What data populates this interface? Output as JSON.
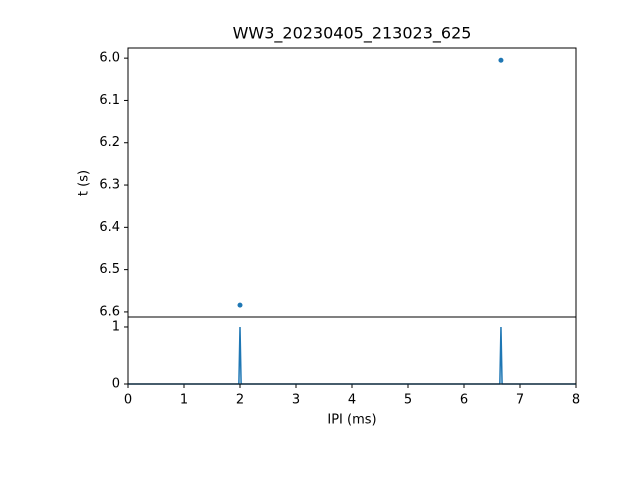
{
  "chart_data": [
    {
      "type": "scatter",
      "title": "WW3_20230405_213023_625",
      "y_label": "t (s)",
      "x": [
        6.66,
        2.0
      ],
      "values": [
        6.005,
        6.584
      ],
      "color": "#1f77b4",
      "xlim": [
        0,
        8
      ],
      "ylim": [
        6.612,
        5.976
      ],
      "yticks": [
        {
          "value": 6.0,
          "label": "6.0"
        },
        6.1,
        6.2,
        6.3,
        6.4,
        6.5,
        6.6
      ]
    },
    {
      "type": "line",
      "x_label": "IPI (ms)",
      "x": [
        0,
        1.98,
        2.0,
        2.02,
        6.64,
        6.66,
        6.68,
        8
      ],
      "values": [
        0,
        0,
        1,
        0,
        0,
        1,
        0,
        0
      ],
      "color": "#1f77b4",
      "xlim": [
        0,
        8
      ],
      "ylim": [
        0,
        1.175
      ],
      "xticks": [
        0,
        1,
        2,
        3,
        4,
        5,
        6,
        7,
        8
      ],
      "yticks": [
        0,
        1
      ]
    }
  ]
}
